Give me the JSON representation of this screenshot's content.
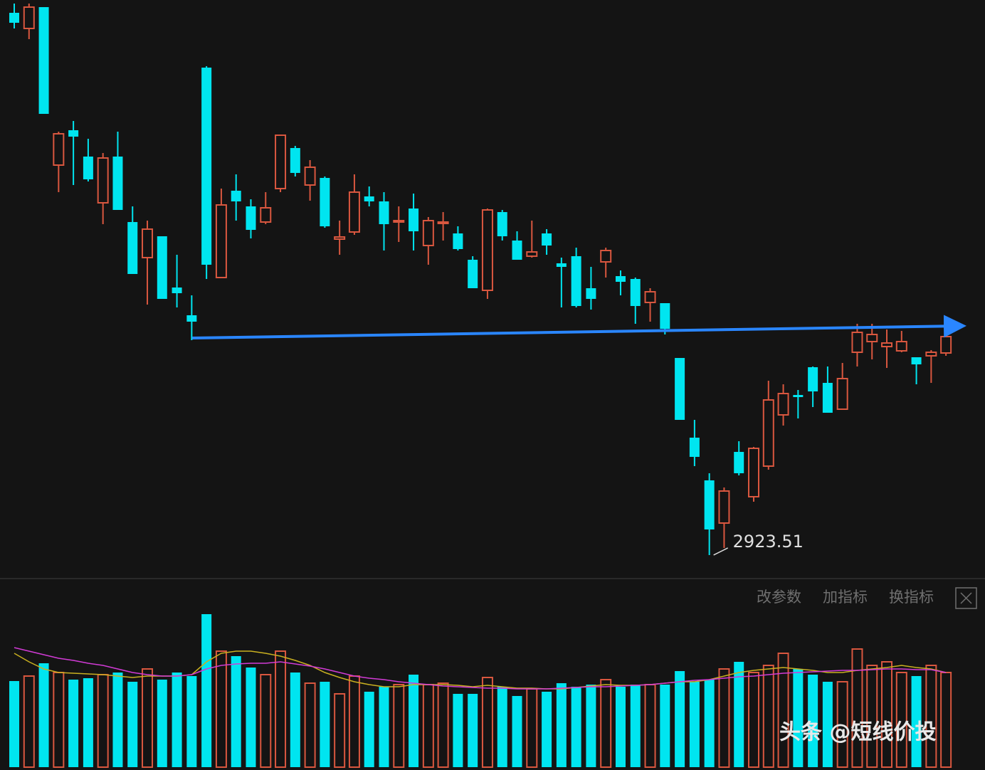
{
  "chart_data": [
    {
      "type": "candlestick",
      "up_color": "#d9573f",
      "down_color": "#00e5f0",
      "ylim": [
        2908.5,
        3313.5
      ],
      "open": [
        3304.5,
        3293.5,
        3308.5,
        3197.5,
        3222,
        3203.5,
        3171,
        3203.5,
        3157.5,
        3132.5,
        3147.5,
        3111.5,
        3092,
        3266,
        3118.5,
        3179.5,
        3168.5,
        3157.5,
        3181,
        3209.5,
        3183.5,
        3188.5,
        3145.5,
        3150.5,
        3175.5,
        3172,
        3157.5,
        3167,
        3141,
        3156.5,
        3149.5,
        3131,
        3109.5,
        3164.5,
        3144.5,
        3133.5,
        3149.5,
        3128.5,
        3133.5,
        3111,
        3129.5,
        3119.5,
        3117.5,
        3101,
        3100.5,
        3062,
        3006,
        2976,
        2946,
        2996,
        2964.5,
        2986,
        3022,
        3036,
        3055.5,
        3044.5,
        3026,
        3066,
        3073.5,
        3070,
        3067,
        3062.5,
        3063.5,
        3065.5
      ],
      "high": [
        3311,
        3311,
        3308.5,
        3221,
        3228.5,
        3216,
        3206,
        3221,
        3168.5,
        3158.5,
        3147.5,
        3134.5,
        3106,
        3267,
        3181,
        3191,
        3173.5,
        3178.5,
        3218.5,
        3211,
        3201,
        3189.5,
        3158.5,
        3191,
        3182.5,
        3178.5,
        3168.5,
        3177.5,
        3161,
        3164.5,
        3154.5,
        3133.5,
        3167,
        3166,
        3151,
        3158.5,
        3152.5,
        3132.5,
        3139.5,
        3126,
        3139.5,
        3123.5,
        3118.5,
        3111,
        3100.5,
        3062,
        3018.5,
        2981,
        2971,
        3003.5,
        2999.5,
        3046,
        3043.5,
        3039.5,
        3056,
        3056,
        3058.5,
        3086,
        3086,
        3082,
        3081,
        3062.5,
        3067.5,
        3080.5
      ],
      "low": [
        3293.5,
        3286,
        3233.5,
        3178.5,
        3183.5,
        3186,
        3156,
        3166,
        3121,
        3099.5,
        3103.5,
        3097.5,
        3074.5,
        3117.5,
        3118.5,
        3158.5,
        3146,
        3156,
        3178.5,
        3189.5,
        3172.5,
        3153.5,
        3134.5,
        3148.5,
        3168.5,
        3137.5,
        3143.5,
        3137.5,
        3127.5,
        3144.5,
        3137.5,
        3111,
        3103.5,
        3144.5,
        3131,
        3132.5,
        3134.5,
        3097.5,
        3097.5,
        3096,
        3118.5,
        3106,
        3086,
        3087.5,
        3078.5,
        3018.5,
        2986,
        2923.51,
        2928.5,
        2979.5,
        2961,
        2983.5,
        3014.5,
        3019.5,
        3027.5,
        3023.5,
        3026,
        3056,
        3061,
        3055,
        3066,
        3043.5,
        3044.5,
        3063.5
      ],
      "close": [
        3297.5,
        3308.5,
        3233.5,
        3219.5,
        3217.5,
        3187.5,
        3202.5,
        3166,
        3121,
        3152.5,
        3103.5,
        3107.5,
        3087.5,
        3127.5,
        3169.5,
        3172,
        3152,
        3167.5,
        3218.5,
        3192,
        3196,
        3154.5,
        3147,
        3178.5,
        3172,
        3156,
        3158.5,
        3151,
        3158.5,
        3157.5,
        3138.5,
        3111,
        3166,
        3147.5,
        3131,
        3136.5,
        3141,
        3126,
        3098.5,
        3103.5,
        3137.5,
        3115.5,
        3098.5,
        3108.5,
        3082.5,
        3018.5,
        2992.5,
        2941.5,
        2968.5,
        2981,
        2998.5,
        3032.5,
        3037,
        3034.5,
        3038.5,
        3023.5,
        3047.5,
        3080,
        3078.5,
        3072.5,
        3073.5,
        3057.5,
        3066,
        3077
      ]
    },
    {
      "type": "volume",
      "ylim": [
        0,
        230
      ],
      "values": [
        121,
        128,
        146,
        133,
        123,
        125,
        130,
        133,
        120,
        138,
        123,
        133,
        128,
        215,
        163,
        156,
        140,
        130,
        163,
        133,
        118,
        120,
        103,
        128,
        106,
        113,
        116,
        130,
        116,
        118,
        103,
        103,
        126,
        113,
        100,
        110,
        106,
        118,
        113,
        116,
        123,
        113,
        116,
        116,
        116,
        135,
        120,
        123,
        138,
        148,
        133,
        143,
        160,
        138,
        130,
        120,
        120,
        166,
        143,
        148,
        133,
        128,
        143,
        133
      ],
      "series": [
        {
          "color": "#c9b020",
          "values": [
            160,
            148,
            138,
            133,
            132,
            131,
            130,
            128,
            126,
            128,
            128,
            128,
            130,
            148,
            160,
            163,
            163,
            160,
            156,
            150,
            143,
            133,
            126,
            120,
            116,
            113,
            113,
            116,
            116,
            116,
            115,
            113,
            115,
            113,
            111,
            111,
            110,
            110,
            112,
            114,
            116,
            115,
            115,
            116,
            118,
            120,
            120,
            123,
            128,
            133,
            136,
            138,
            140,
            138,
            136,
            133,
            133,
            136,
            138,
            140,
            143,
            140,
            138,
            133
          ]
        },
        {
          "color": "#d23bd6",
          "values": [
            168,
            163,
            158,
            153,
            150,
            146,
            143,
            138,
            133,
            130,
            128,
            128,
            130,
            138,
            143,
            145,
            146,
            146,
            148,
            145,
            142,
            138,
            133,
            128,
            125,
            123,
            120,
            118,
            116,
            114,
            113,
            112,
            111,
            111,
            110,
            110,
            110,
            111,
            112,
            113,
            113,
            114,
            115,
            116,
            118,
            120,
            122,
            123,
            125,
            127,
            128,
            130,
            132,
            133,
            134,
            135,
            136,
            136,
            137,
            138,
            138,
            137,
            137,
            133
          ]
        }
      ]
    }
  ],
  "toolbar": [
    "改参数",
    "加指标",
    "换指标"
  ],
  "watermark": "头条 @短线价投"
}
